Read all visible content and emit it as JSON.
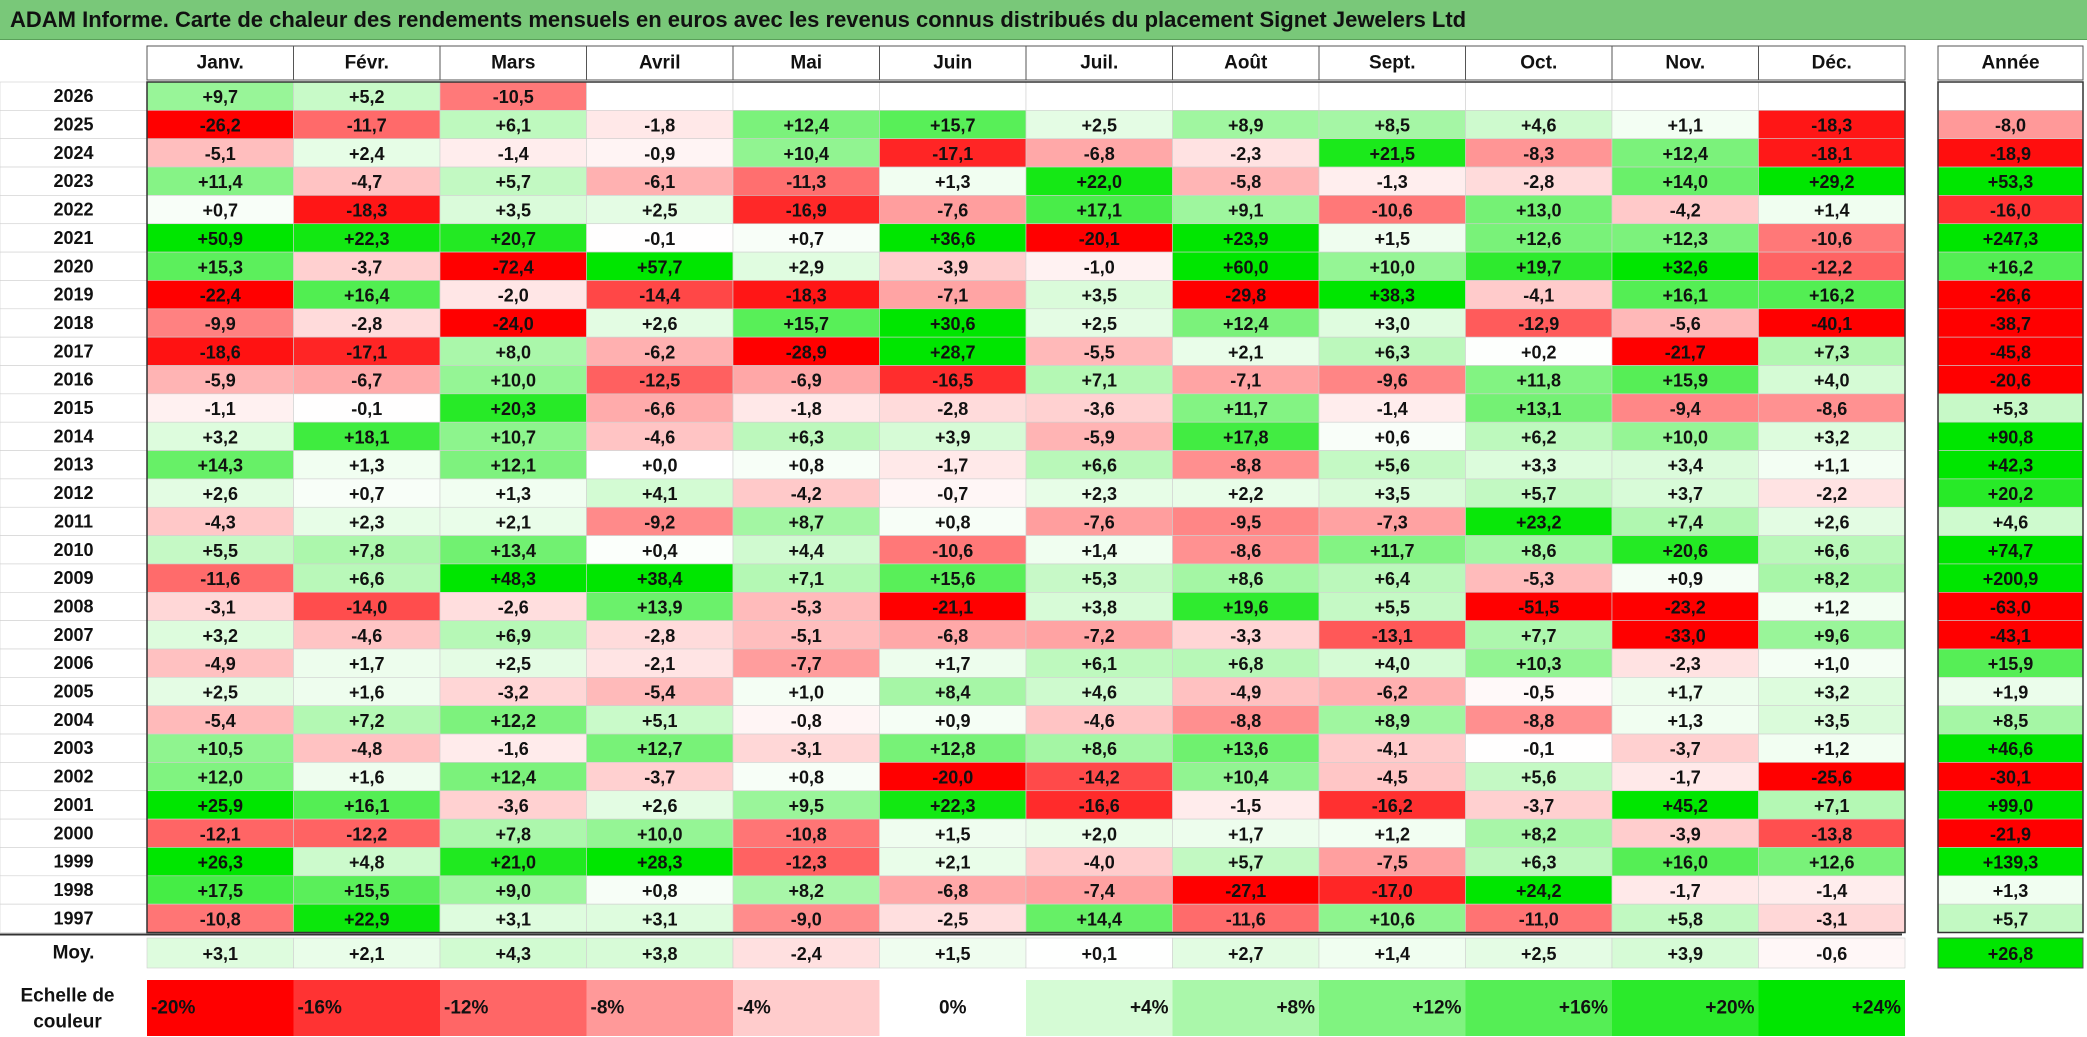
{
  "title": "ADAM Informe. Carte de chaleur des rendements mensuels en euros avec les revenus connus distribués du placement Signet Jewelers Ltd",
  "chart_data": {
    "type": "heatmap",
    "title": "ADAM Informe. Carte de chaleur des rendements mensuels en euros avec les revenus connus distribués du placement Signet Jewelers Ltd",
    "months": [
      "Janv.",
      "Févr.",
      "Mars",
      "Avril",
      "Mai",
      "Juin",
      "Juil.",
      "Août",
      "Sept.",
      "Oct.",
      "Nov.",
      "Déc."
    ],
    "year_header": "Année",
    "rows": [
      {
        "year": "2026",
        "values": [
          "+9,7",
          "+5,2",
          "-10,5",
          "",
          "",
          "",
          "",
          "",
          "",
          "",
          "",
          ""
        ],
        "annual": ""
      },
      {
        "year": "2025",
        "values": [
          "-26,2",
          "-11,7",
          "+6,1",
          "-1,8",
          "+12,4",
          "+15,7",
          "+2,5",
          "+8,9",
          "+8,5",
          "+4,6",
          "+1,1",
          "-18,3"
        ],
        "annual": "-8,0"
      },
      {
        "year": "2024",
        "values": [
          "-5,1",
          "+2,4",
          "-1,4",
          "-0,9",
          "+10,4",
          "-17,1",
          "-6,8",
          "-2,3",
          "+21,5",
          "-8,3",
          "+12,4",
          "-18,1"
        ],
        "annual": "-18,9"
      },
      {
        "year": "2023",
        "values": [
          "+11,4",
          "-4,7",
          "+5,7",
          "-6,1",
          "-11,3",
          "+1,3",
          "+22,0",
          "-5,8",
          "-1,3",
          "-2,8",
          "+14,0",
          "+29,2"
        ],
        "annual": "+53,3"
      },
      {
        "year": "2022",
        "values": [
          "+0,7",
          "-18,3",
          "+3,5",
          "+2,5",
          "-16,9",
          "-7,6",
          "+17,1",
          "+9,1",
          "-10,6",
          "+13,0",
          "-4,2",
          "+1,4"
        ],
        "annual": "-16,0"
      },
      {
        "year": "2021",
        "values": [
          "+50,9",
          "+22,3",
          "+20,7",
          "-0,1",
          "+0,7",
          "+36,6",
          "-20,1",
          "+23,9",
          "+1,5",
          "+12,6",
          "+12,3",
          "-10,6"
        ],
        "annual": "+247,3"
      },
      {
        "year": "2020",
        "values": [
          "+15,3",
          "-3,7",
          "-72,4",
          "+57,7",
          "+2,9",
          "-3,9",
          "-1,0",
          "+60,0",
          "+10,0",
          "+19,7",
          "+32,6",
          "-12,2"
        ],
        "annual": "+16,2"
      },
      {
        "year": "2019",
        "values": [
          "-22,4",
          "+16,4",
          "-2,0",
          "-14,4",
          "-18,3",
          "-7,1",
          "+3,5",
          "-29,8",
          "+38,3",
          "-4,1",
          "+16,1",
          "+16,2"
        ],
        "annual": "-26,6"
      },
      {
        "year": "2018",
        "values": [
          "-9,9",
          "-2,8",
          "-24,0",
          "+2,6",
          "+15,7",
          "+30,6",
          "+2,5",
          "+12,4",
          "+3,0",
          "-12,9",
          "-5,6",
          "-40,1"
        ],
        "annual": "-38,7"
      },
      {
        "year": "2017",
        "values": [
          "-18,6",
          "-17,1",
          "+8,0",
          "-6,2",
          "-28,9",
          "+28,7",
          "-5,5",
          "+2,1",
          "+6,3",
          "+0,2",
          "-21,7",
          "+7,3"
        ],
        "annual": "-45,8"
      },
      {
        "year": "2016",
        "values": [
          "-5,9",
          "-6,7",
          "+10,0",
          "-12,5",
          "-6,9",
          "-16,5",
          "+7,1",
          "-7,1",
          "-9,6",
          "+11,8",
          "+15,9",
          "+4,0"
        ],
        "annual": "-20,6"
      },
      {
        "year": "2015",
        "values": [
          "-1,1",
          "-0,1",
          "+20,3",
          "-6,6",
          "-1,8",
          "-2,8",
          "-3,6",
          "+11,7",
          "-1,4",
          "+13,1",
          "-9,4",
          "-8,6"
        ],
        "annual": "+5,3"
      },
      {
        "year": "2014",
        "values": [
          "+3,2",
          "+18,1",
          "+10,7",
          "-4,6",
          "+6,3",
          "+3,9",
          "-5,9",
          "+17,8",
          "+0,6",
          "+6,2",
          "+10,0",
          "+3,2"
        ],
        "annual": "+90,8"
      },
      {
        "year": "2013",
        "values": [
          "+14,3",
          "+1,3",
          "+12,1",
          "+0,0",
          "+0,8",
          "-1,7",
          "+6,6",
          "-8,8",
          "+5,6",
          "+3,3",
          "+3,4",
          "+1,1"
        ],
        "annual": "+42,3"
      },
      {
        "year": "2012",
        "values": [
          "+2,6",
          "+0,7",
          "+1,3",
          "+4,1",
          "-4,2",
          "-0,7",
          "+2,3",
          "+2,2",
          "+3,5",
          "+5,7",
          "+3,7",
          "-2,2"
        ],
        "annual": "+20,2"
      },
      {
        "year": "2011",
        "values": [
          "-4,3",
          "+2,3",
          "+2,1",
          "-9,2",
          "+8,7",
          "+0,8",
          "-7,6",
          "-9,5",
          "-7,3",
          "+23,2",
          "+7,4",
          "+2,6"
        ],
        "annual": "+4,6"
      },
      {
        "year": "2010",
        "values": [
          "+5,5",
          "+7,8",
          "+13,4",
          "+0,4",
          "+4,4",
          "-10,6",
          "+1,4",
          "-8,6",
          "+11,7",
          "+8,6",
          "+20,6",
          "+6,6"
        ],
        "annual": "+74,7"
      },
      {
        "year": "2009",
        "values": [
          "-11,6",
          "+6,6",
          "+48,3",
          "+38,4",
          "+7,1",
          "+15,6",
          "+5,3",
          "+8,6",
          "+6,4",
          "-5,3",
          "+0,9",
          "+8,2"
        ],
        "annual": "+200,9"
      },
      {
        "year": "2008",
        "values": [
          "-3,1",
          "-14,0",
          "-2,6",
          "+13,9",
          "-5,3",
          "-21,1",
          "+3,8",
          "+19,6",
          "+5,5",
          "-51,5",
          "-23,2",
          "+1,2"
        ],
        "annual": "-63,0"
      },
      {
        "year": "2007",
        "values": [
          "+3,2",
          "-4,6",
          "+6,9",
          "-2,8",
          "-5,1",
          "-6,8",
          "-7,2",
          "-3,3",
          "-13,1",
          "+7,7",
          "-33,0",
          "+9,6"
        ],
        "annual": "-43,1"
      },
      {
        "year": "2006",
        "values": [
          "-4,9",
          "+1,7",
          "+2,5",
          "-2,1",
          "-7,7",
          "+1,7",
          "+6,1",
          "+6,8",
          "+4,0",
          "+10,3",
          "-2,3",
          "+1,0"
        ],
        "annual": "+15,9"
      },
      {
        "year": "2005",
        "values": [
          "+2,5",
          "+1,6",
          "-3,2",
          "-5,4",
          "+1,0",
          "+8,4",
          "+4,6",
          "-4,9",
          "-6,2",
          "-0,5",
          "+1,7",
          "+3,2"
        ],
        "annual": "+1,9"
      },
      {
        "year": "2004",
        "values": [
          "-5,4",
          "+7,2",
          "+12,2",
          "+5,1",
          "-0,8",
          "+0,9",
          "-4,6",
          "-8,8",
          "+8,9",
          "-8,8",
          "+1,3",
          "+3,5"
        ],
        "annual": "+8,5"
      },
      {
        "year": "2003",
        "values": [
          "+10,5",
          "-4,8",
          "-1,6",
          "+12,7",
          "-3,1",
          "+12,8",
          "+8,6",
          "+13,6",
          "-4,1",
          "-0,1",
          "-3,7",
          "+1,2"
        ],
        "annual": "+46,6"
      },
      {
        "year": "2002",
        "values": [
          "+12,0",
          "+1,6",
          "+12,4",
          "-3,7",
          "+0,8",
          "-20,0",
          "-14,2",
          "+10,4",
          "-4,5",
          "+5,6",
          "-1,7",
          "-25,6"
        ],
        "annual": "-30,1"
      },
      {
        "year": "2001",
        "values": [
          "+25,9",
          "+16,1",
          "-3,6",
          "+2,6",
          "+9,5",
          "+22,3",
          "-16,6",
          "-1,5",
          "-16,2",
          "-3,7",
          "+45,2",
          "+7,1"
        ],
        "annual": "+99,0"
      },
      {
        "year": "2000",
        "values": [
          "-12,1",
          "-12,2",
          "+7,8",
          "+10,0",
          "-10,8",
          "+1,5",
          "+2,0",
          "+1,7",
          "+1,2",
          "+8,2",
          "-3,9",
          "-13,8"
        ],
        "annual": "-21,9"
      },
      {
        "year": "1999",
        "values": [
          "+26,3",
          "+4,8",
          "+21,0",
          "+28,3",
          "-12,3",
          "+2,1",
          "-4,0",
          "+5,7",
          "-7,5",
          "+6,3",
          "+16,0",
          "+12,6"
        ],
        "annual": "+139,3"
      },
      {
        "year": "1998",
        "values": [
          "+17,5",
          "+15,5",
          "+9,0",
          "+0,8",
          "+8,2",
          "-6,8",
          "-7,4",
          "-27,1",
          "-17,0",
          "+24,2",
          "-1,7",
          "-1,4"
        ],
        "annual": "+1,3"
      },
      {
        "year": "1997",
        "values": [
          "-10,8",
          "+22,9",
          "+3,1",
          "+3,1",
          "-9,0",
          "-2,5",
          "+14,4",
          "-11,6",
          "+10,6",
          "-11,0",
          "+5,8",
          "-3,1"
        ],
        "annual": "+5,7"
      }
    ],
    "average": {
      "label": "Moy.",
      "values": [
        "+3,1",
        "+2,1",
        "+4,3",
        "+3,8",
        "-2,4",
        "+1,5",
        "+0,1",
        "+2,7",
        "+1,4",
        "+2,5",
        "+3,9",
        "-0,6"
      ],
      "annual": "+26,8"
    },
    "color_scale": {
      "label_line1": "Echelle de",
      "label_line2": "couleur",
      "steps": [
        "-20%",
        "-16%",
        "-12%",
        "-8%",
        "-4%",
        "0%",
        "+4%",
        "+8%",
        "+12%",
        "+16%",
        "+20%",
        "+24%"
      ],
      "step_values": [
        -20,
        -16,
        -12,
        -8,
        -4,
        0,
        4,
        8,
        12,
        16,
        20,
        24
      ],
      "negative_color": "#ff0000",
      "neutral_color": "#ffffff",
      "positive_color": "#00e600"
    }
  }
}
